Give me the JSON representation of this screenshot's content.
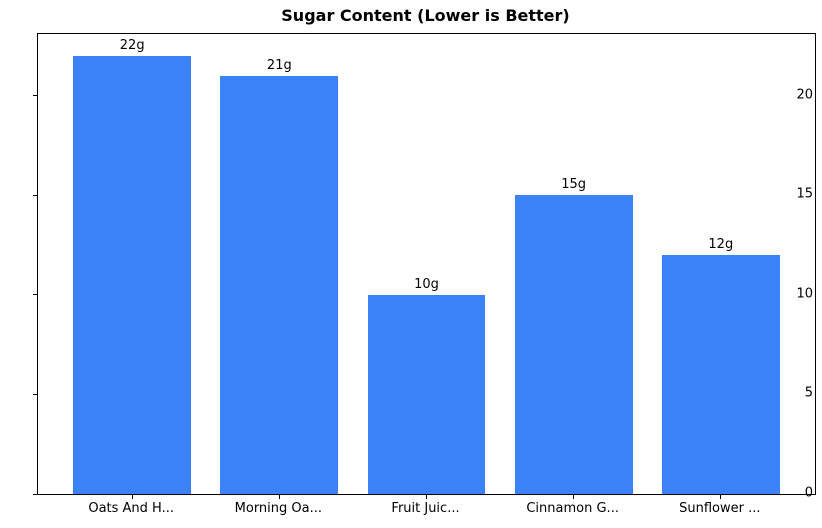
{
  "title": "Sugar Content (Lower is Better)",
  "chart_data": {
    "type": "bar",
    "title": "Sugar Content (Lower is Better)",
    "categories": [
      "Oats And H...",
      "Morning Oa...",
      "Fruit Juic...",
      "Cinnamon G...",
      "Sunflower ..."
    ],
    "values": [
      22,
      21,
      10,
      15,
      12
    ],
    "bar_labels": [
      "22g",
      "21g",
      "10g",
      "15g",
      "12g"
    ],
    "xlabel": "",
    "ylabel": "",
    "ylim": [
      0,
      23.1
    ],
    "yticks": [
      0,
      5,
      10,
      15,
      20
    ],
    "grid": false,
    "legend_position": "none",
    "bar_color": "#3b82f6",
    "text_color": "#000000",
    "background_color": "#ffffff"
  }
}
